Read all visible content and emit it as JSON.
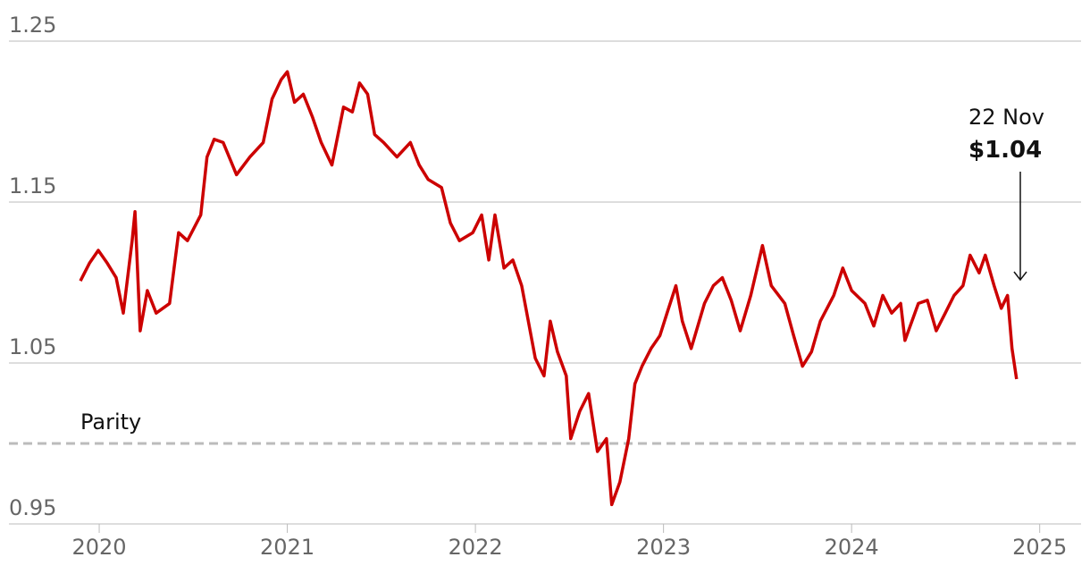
{
  "chart_data": {
    "type": "line",
    "x": [
      2019.9,
      2019.948,
      2019.995,
      2020.043,
      2020.09,
      2020.128,
      2020.175,
      2020.19,
      2020.218,
      2020.256,
      2020.303,
      2020.374,
      2020.422,
      2020.469,
      2020.54,
      2020.573,
      2020.611,
      2020.659,
      2020.73,
      2020.801,
      2020.872,
      2020.919,
      2020.967,
      2021.0,
      2021.038,
      2021.085,
      2021.133,
      2021.18,
      2021.237,
      2021.299,
      2021.346,
      2021.384,
      2021.427,
      2021.464,
      2021.512,
      2021.583,
      2021.654,
      2021.701,
      2021.749,
      2021.82,
      2021.867,
      2021.915,
      2021.986,
      2022.033,
      2022.071,
      2022.104,
      2022.152,
      2022.199,
      2022.246,
      2022.318,
      2022.365,
      2022.398,
      2022.436,
      2022.483,
      2022.507,
      2022.555,
      2022.602,
      2022.649,
      2022.697,
      2022.725,
      2022.768,
      2022.815,
      2022.848,
      2022.886,
      2022.934,
      2022.981,
      2023.019,
      2023.066,
      2023.1,
      2023.147,
      2023.218,
      2023.265,
      2023.313,
      2023.36,
      2023.408,
      2023.464,
      2023.526,
      2023.573,
      2023.645,
      2023.692,
      2023.739,
      2023.787,
      2023.834,
      2023.905,
      2023.953,
      2024.0,
      2024.071,
      2024.118,
      2024.166,
      2024.213,
      2024.261,
      2024.284,
      2024.355,
      2024.403,
      2024.45,
      2024.498,
      2024.545,
      2024.592,
      2024.63,
      2024.678,
      2024.711,
      2024.758,
      2024.796,
      2024.829,
      2024.853,
      2024.877
    ],
    "series": [
      {
        "color": "#cc0000",
        "values": [
          1.101,
          1.112,
          1.12,
          1.112,
          1.103,
          1.081,
          1.126,
          1.144,
          1.07,
          1.095,
          1.081,
          1.087,
          1.131,
          1.126,
          1.142,
          1.178,
          1.189,
          1.187,
          1.167,
          1.178,
          1.187,
          1.214,
          1.226,
          1.231,
          1.212,
          1.217,
          1.203,
          1.187,
          1.173,
          1.209,
          1.206,
          1.224,
          1.217,
          1.192,
          1.187,
          1.178,
          1.187,
          1.173,
          1.164,
          1.159,
          1.137,
          1.126,
          1.131,
          1.142,
          1.114,
          1.142,
          1.109,
          1.114,
          1.098,
          1.053,
          1.042,
          1.076,
          1.057,
          1.042,
          1.003,
          1.02,
          1.031,
          0.995,
          1.003,
          0.962,
          0.976,
          1.003,
          1.037,
          1.048,
          1.059,
          1.067,
          1.081,
          1.098,
          1.076,
          1.059,
          1.087,
          1.098,
          1.103,
          1.089,
          1.07,
          1.092,
          1.123,
          1.098,
          1.087,
          1.067,
          1.048,
          1.057,
          1.076,
          1.092,
          1.109,
          1.095,
          1.087,
          1.073,
          1.092,
          1.081,
          1.087,
          1.064,
          1.087,
          1.089,
          1.07,
          1.081,
          1.092,
          1.098,
          1.117,
          1.106,
          1.117,
          1.098,
          1.084,
          1.092,
          1.059,
          1.04
        ]
      }
    ],
    "xlim": [
      2019.52,
      2025.22
    ],
    "xticks": [
      2020,
      2021,
      2022,
      2023,
      2024,
      2025
    ],
    "ylim": [
      0.95,
      1.25
    ],
    "yticks": [
      0.95,
      1.05,
      1.15,
      1.25
    ],
    "grid": true,
    "reference_line": {
      "value": 1,
      "label": "Parity"
    },
    "annotation": {
      "label": "22 Nov",
      "value": 1.04,
      "value_label": "$1.04"
    }
  }
}
